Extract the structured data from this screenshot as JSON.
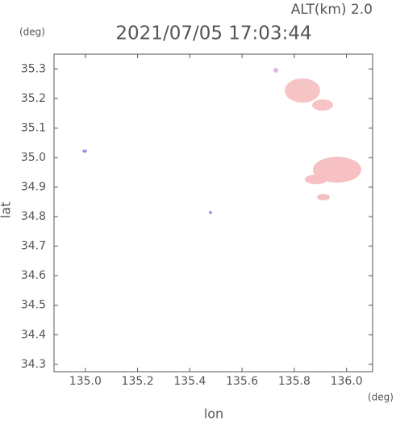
{
  "chart_data": {
    "type": "map",
    "title": "2021/07/05 17:03:44",
    "annotation": "ALT(km) 2.0",
    "y_unit": "(deg)",
    "x_unit": "(deg)",
    "xlabel": "lon",
    "ylabel": "lat",
    "xlim": [
      134.88,
      136.1
    ],
    "ylim": [
      34.275,
      35.35
    ],
    "xticks": [
      {
        "value": 135,
        "label": "135.0"
      },
      135.2,
      135.4,
      135.6,
      135.8,
      {
        "value": 136,
        "label": "136.0"
      }
    ],
    "yticks": [
      34.3,
      34.4,
      34.5,
      34.6,
      34.7,
      34.8,
      34.9,
      {
        "value": 35,
        "label": "35.0"
      },
      35.1,
      35.2,
      35.3
    ]
  }
}
